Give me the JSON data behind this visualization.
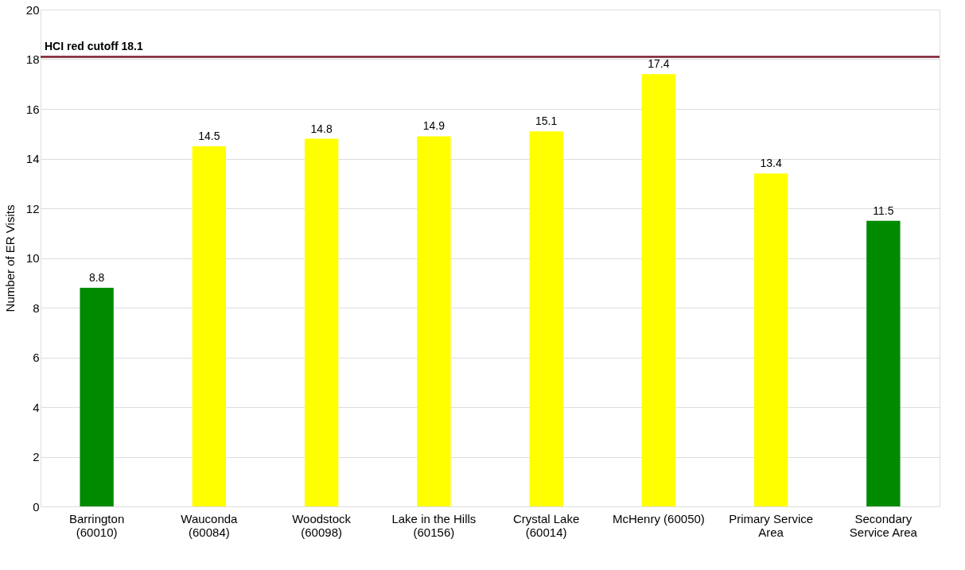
{
  "chart_data": {
    "type": "bar",
    "ylabel": "Number of ER Visits",
    "categories": [
      "Barrington\n(60010)",
      "Wauconda\n(60084)",
      "Woodstock\n(60098)",
      "Lake in the Hills\n(60156)",
      "Crystal Lake\n(60014)",
      "McHenry (60050)",
      "Primary Service\nArea",
      "Secondary\nService Area"
    ],
    "values": [
      8.8,
      14.5,
      14.8,
      14.9,
      15.1,
      17.4,
      13.4,
      11.5
    ],
    "colors": [
      "#008a00",
      "#ffff00",
      "#ffff00",
      "#ffff00",
      "#ffff00",
      "#ffff00",
      "#ffff00",
      "#008a00"
    ],
    "ylim": [
      0,
      20
    ],
    "yticks": [
      0,
      2,
      4,
      6,
      8,
      10,
      12,
      14,
      16,
      18,
      20
    ],
    "grid": "y",
    "data_labels": true,
    "ref_lines": [
      {
        "axis": "y",
        "value": 18.1,
        "label": "HCI red cutoff 18.1",
        "color": "#7b1c2e"
      }
    ]
  }
}
